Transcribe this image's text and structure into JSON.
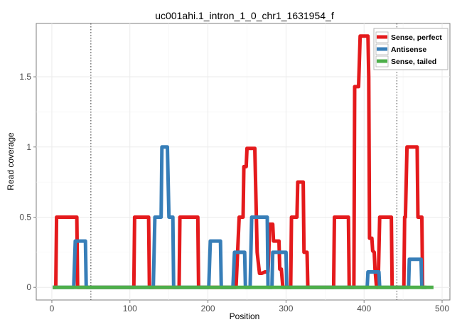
{
  "chart_data": {
    "type": "line",
    "title": "uc001ahi.1_intron_1_0_chr1_1631954_f",
    "xlabel": "Position",
    "ylabel": "Read coverage",
    "xlim": [
      -20,
      510
    ],
    "ylim": [
      -0.09,
      1.88
    ],
    "x_ticks": [
      0,
      100,
      200,
      300,
      400,
      500
    ],
    "x_tick_labels": [
      "0",
      "100",
      "200",
      "300",
      "400",
      "500"
    ],
    "y_ticks": [
      0,
      0.5,
      1,
      1.5
    ],
    "y_tick_labels": [
      "0",
      "0.5",
      "1",
      "1.5"
    ],
    "grid": true,
    "legend_position": "top-right",
    "vlines": [
      50,
      442
    ],
    "series": [
      {
        "name": "Sense, perfect",
        "color": "#e41a1c",
        "points": [
          [
            1,
            0
          ],
          [
            5,
            0
          ],
          [
            6,
            0.5
          ],
          [
            32,
            0.5
          ],
          [
            33,
            0
          ],
          [
            105,
            0
          ],
          [
            106,
            0.5
          ],
          [
            124,
            0.5
          ],
          [
            125,
            0
          ],
          [
            163,
            0
          ],
          [
            164,
            0.5
          ],
          [
            187,
            0.5
          ],
          [
            188,
            0
          ],
          [
            236,
            0
          ],
          [
            240,
            0.5
          ],
          [
            245,
            0.5
          ],
          [
            246,
            0.86
          ],
          [
            249,
            0.86
          ],
          [
            250,
            0.99
          ],
          [
            260,
            0.99
          ],
          [
            262,
            0.5
          ],
          [
            263,
            0.25
          ],
          [
            266,
            0.1
          ],
          [
            269,
            0.1
          ],
          [
            273,
            0.11
          ],
          [
            277,
            0.11
          ],
          [
            278,
            0.25
          ],
          [
            279,
            0.45
          ],
          [
            283,
            0.45
          ],
          [
            284,
            0.33
          ],
          [
            291,
            0.33
          ],
          [
            292,
            0.13
          ],
          [
            294,
            0.13
          ],
          [
            296,
            0
          ],
          [
            306,
            0
          ],
          [
            307,
            0.5
          ],
          [
            314,
            0.5
          ],
          [
            315,
            0.75
          ],
          [
            322,
            0.75
          ],
          [
            323,
            0.25
          ],
          [
            327,
            0.25
          ],
          [
            328,
            0
          ],
          [
            361,
            0
          ],
          [
            362,
            0.5
          ],
          [
            380,
            0.5
          ],
          [
            381,
            0
          ],
          [
            387,
            0
          ],
          [
            388,
            1.43
          ],
          [
            393,
            1.43
          ],
          [
            395,
            1.79
          ],
          [
            405,
            1.79
          ],
          [
            406,
            1.5
          ],
          [
            407,
            0.35
          ],
          [
            410,
            0.35
          ],
          [
            411,
            0.26
          ],
          [
            413,
            0.25
          ],
          [
            414,
            0.13
          ],
          [
            416,
            0
          ],
          [
            418,
            0
          ],
          [
            420,
            0.5
          ],
          [
            435,
            0.5
          ],
          [
            436,
            0
          ],
          [
            451,
            0
          ],
          [
            452,
            0.5
          ],
          [
            453,
            0.5
          ],
          [
            455,
            1.0
          ],
          [
            468,
            1.0
          ],
          [
            469,
            0.5
          ],
          [
            474,
            0.5
          ],
          [
            475,
            0
          ]
        ]
      },
      {
        "name": "Antisense",
        "color": "#377eb8",
        "points": [
          [
            1,
            0
          ],
          [
            28,
            0
          ],
          [
            30,
            0.33
          ],
          [
            43,
            0.33
          ],
          [
            44,
            0
          ],
          [
            130,
            0
          ],
          [
            132,
            0.5
          ],
          [
            140,
            0.5
          ],
          [
            141,
            1.0
          ],
          [
            148,
            1.0
          ],
          [
            150,
            0.5
          ],
          [
            155,
            0.5
          ],
          [
            156,
            0
          ],
          [
            201,
            0
          ],
          [
            203,
            0.33
          ],
          [
            216,
            0.33
          ],
          [
            217,
            0
          ],
          [
            232,
            0
          ],
          [
            234,
            0.25
          ],
          [
            247,
            0.25
          ],
          [
            248,
            0
          ],
          [
            254,
            0
          ],
          [
            256,
            0.5
          ],
          [
            276,
            0.5
          ],
          [
            277,
            0
          ],
          [
            282,
            0
          ],
          [
            283,
            0.25
          ],
          [
            300,
            0.25
          ],
          [
            301,
            0
          ],
          [
            404,
            0
          ],
          [
            405,
            0.11
          ],
          [
            419,
            0.11
          ],
          [
            420,
            0
          ],
          [
            457,
            0
          ],
          [
            458,
            0.2
          ],
          [
            473,
            0.2
          ],
          [
            474,
            0
          ],
          [
            480,
            0
          ]
        ]
      },
      {
        "name": "Sense, tailed",
        "color": "#4daf4a",
        "points": [
          [
            1,
            0
          ],
          [
            489,
            0
          ]
        ]
      }
    ]
  }
}
